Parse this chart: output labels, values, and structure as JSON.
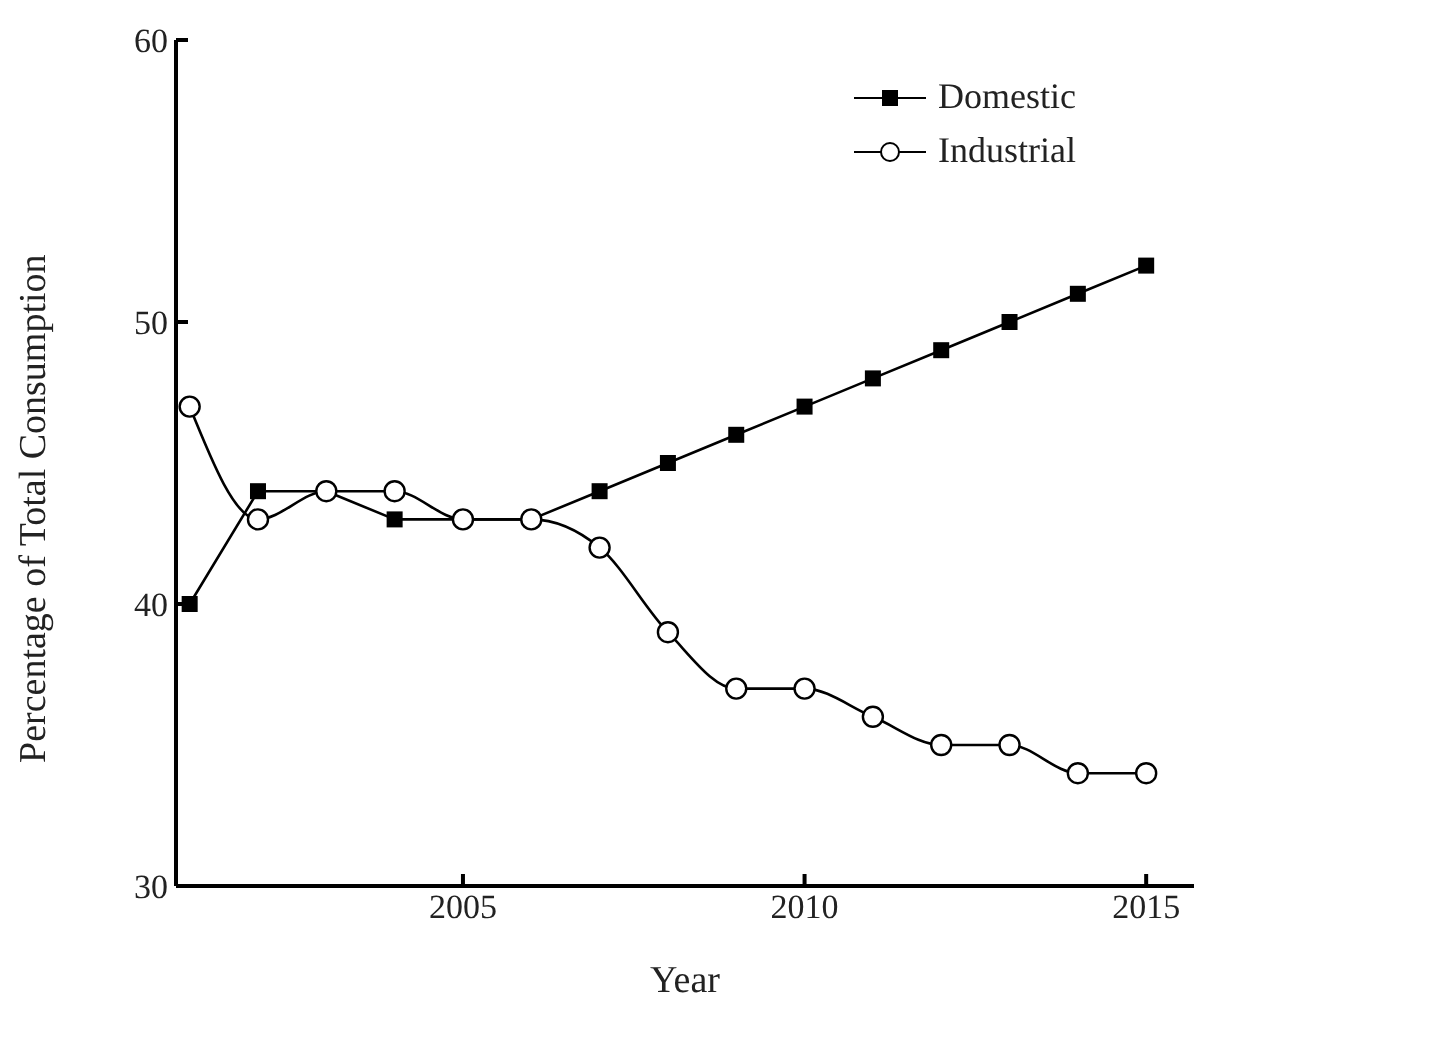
{
  "chart_data": {
    "type": "line",
    "xlabel": "Year",
    "ylabel": "Percentage of Total Consumption",
    "x": [
      2001,
      2002,
      2003,
      2004,
      2005,
      2006,
      2007,
      2008,
      2009,
      2010,
      2011,
      2012,
      2013,
      2014,
      2015
    ],
    "series": [
      {
        "name": "Domestic",
        "color": "#000000",
        "marker": "square",
        "values": [
          40,
          44,
          44,
          43,
          43,
          43,
          44,
          45,
          46,
          47,
          48,
          49,
          50,
          51,
          52
        ]
      },
      {
        "name": "Industrial",
        "color": "#000000",
        "marker": "circle",
        "values": [
          47,
          43,
          44,
          44,
          43,
          43,
          42,
          39,
          37,
          37,
          36,
          35,
          35,
          34,
          34
        ]
      }
    ],
    "xlim": [
      2000.8,
      2015.7
    ],
    "xticks": [
      2005,
      2010,
      2015
    ],
    "ylim": [
      30,
      60
    ],
    "yticks": [
      30,
      40,
      50,
      60
    ],
    "grid": false,
    "legend": "top right",
    "line_style": "solid"
  }
}
